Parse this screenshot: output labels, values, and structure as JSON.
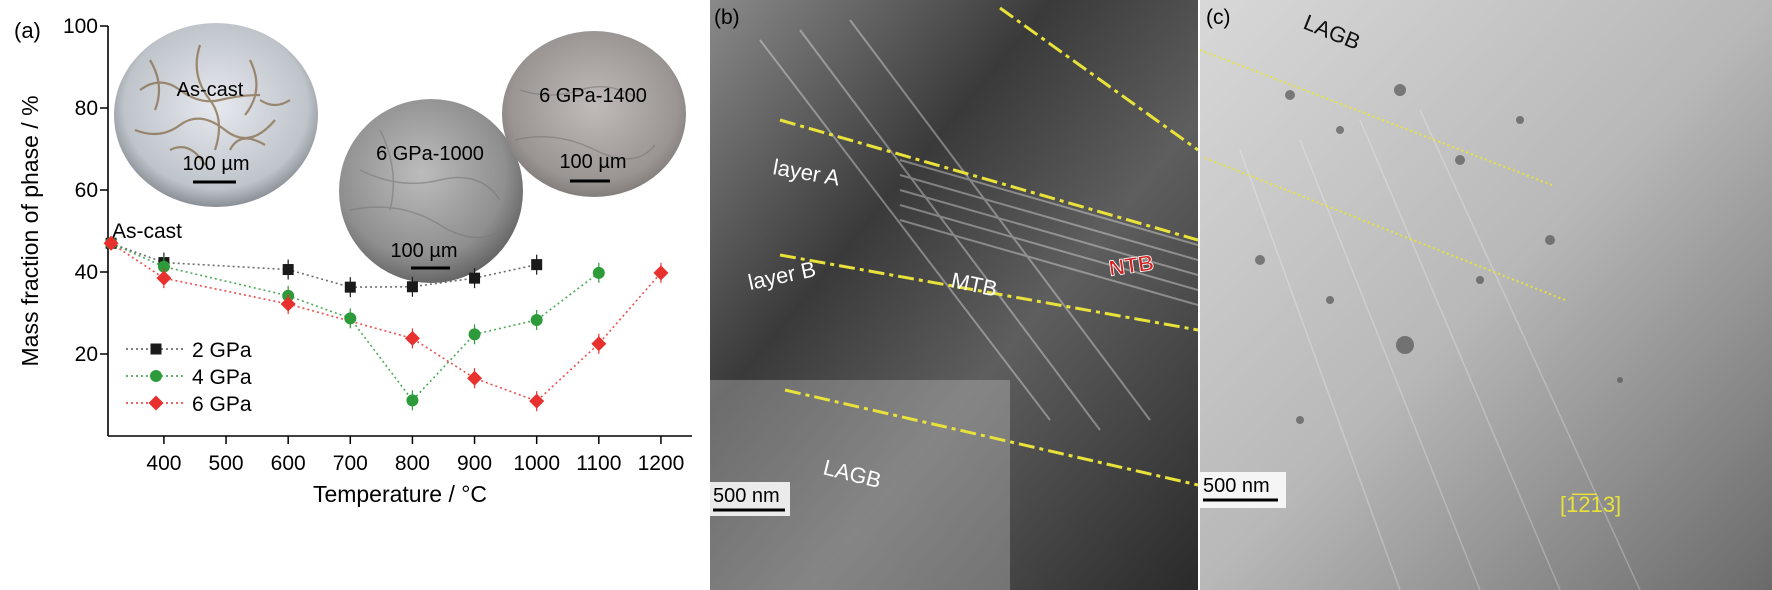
{
  "chart_data": {
    "type": "scatter",
    "panel_label": "(a)",
    "xlabel": "Temperature / °C",
    "ylabel": "Mass fraction of phase / %",
    "xlim": [
      310,
      1250
    ],
    "ylim": [
      0,
      100
    ],
    "xticks": [
      400,
      500,
      600,
      700,
      800,
      900,
      1000,
      1100,
      1200
    ],
    "yticks": [
      20,
      40,
      60,
      80,
      100
    ],
    "initial_point": {
      "label": "As-cast",
      "x": 315,
      "y": 47
    },
    "legend_position": "bottom-left",
    "series": [
      {
        "name": "2 GPa",
        "color": "#1a1a1a",
        "marker": "square",
        "x": [
          315,
          400,
          600,
          700,
          800,
          900,
          1000
        ],
        "y": [
          47,
          42.3,
          40.6,
          36.3,
          36.4,
          38.5,
          41.8
        ]
      },
      {
        "name": "4 GPa",
        "color": "#2e9b3a",
        "marker": "circle",
        "x": [
          315,
          400,
          600,
          700,
          800,
          900,
          1000,
          1100
        ],
        "y": [
          47,
          41.3,
          34.2,
          28.7,
          8.7,
          24.8,
          28.3,
          39.8
        ]
      },
      {
        "name": "6 GPa",
        "color": "#e8302e",
        "marker": "diamond",
        "x": [
          315,
          400,
          600,
          800,
          900,
          1000,
          1100,
          1200
        ],
        "y": [
          47,
          38.5,
          32.2,
          23.8,
          14.1,
          8.5,
          22.5,
          39.8
        ]
      }
    ],
    "insets": [
      {
        "label": "As-cast",
        "scale_bar": "100 µm"
      },
      {
        "label": "6 GPa-1000",
        "scale_bar": "100 µm"
      },
      {
        "label": "6 GPa-1400",
        "scale_bar": "100 µm"
      }
    ]
  },
  "micrographs": {
    "b": {
      "panel_label": "(b)",
      "scale_bar": "500 nm",
      "annotations": [
        "layer A",
        "layer B",
        "MTB",
        "NTB",
        "LAGB"
      ]
    },
    "c": {
      "panel_label": "(c)",
      "scale_bar": "500 nm",
      "annotations": [
        "LAGB"
      ],
      "zone_axis": "[1̅2̅13]"
    }
  },
  "colors": {
    "guide_yellow": "#e8e23a",
    "ntb_red": "#d42020",
    "axis_black": "#000000"
  }
}
